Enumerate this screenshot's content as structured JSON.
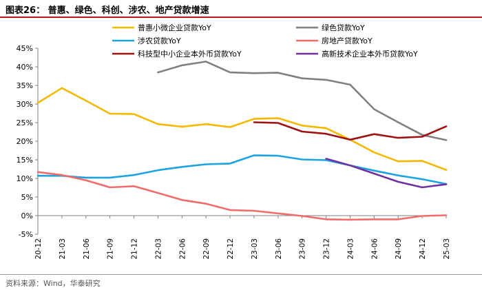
{
  "figure": {
    "title": "图表26：  普惠、绿色、科创、涉农、地产贷款增速",
    "source": "资料来源：Wind，华泰研究"
  },
  "chart_data": {
    "type": "line",
    "title": "普惠、绿色、科创、涉农、地产贷款增速",
    "xlabel": "",
    "ylabel": "",
    "ylim": [
      -0.05,
      0.45
    ],
    "yticks": [
      -0.05,
      0,
      0.05,
      0.1,
      0.15,
      0.2,
      0.25,
      0.3,
      0.35,
      0.4,
      0.45
    ],
    "ytick_labels": [
      "-5%",
      "0%",
      "5%",
      "10%",
      "15%",
      "20%",
      "25%",
      "30%",
      "35%",
      "40%",
      "45%"
    ],
    "categories": [
      "20-12",
      "21-03",
      "21-06",
      "21-09",
      "21-12",
      "22-03",
      "22-06",
      "22-09",
      "22-12",
      "23-03",
      "23-06",
      "23-09",
      "23-12",
      "24-03",
      "24-06",
      "24-09",
      "24-12",
      "25-03"
    ],
    "grid": false,
    "legend": "top",
    "series": [
      {
        "name": "普惠小微企业贷款YoY",
        "color": "#f5b800",
        "values": [
          0.303,
          0.343,
          0.309,
          0.274,
          0.273,
          0.246,
          0.239,
          0.246,
          0.238,
          0.26,
          0.262,
          0.242,
          0.235,
          0.204,
          0.17,
          0.146,
          0.147,
          0.123
        ]
      },
      {
        "name": "绿色贷款YoY",
        "color": "#7f7f7f",
        "values": [
          null,
          null,
          null,
          null,
          null,
          0.385,
          0.404,
          0.414,
          0.385,
          0.383,
          0.384,
          0.369,
          0.365,
          0.352,
          0.286,
          0.251,
          0.217,
          0.203
        ]
      },
      {
        "name": "涉农贷款YoY",
        "color": "#1aa3e0",
        "values": [
          0.107,
          0.107,
          0.102,
          0.102,
          0.109,
          0.122,
          0.131,
          0.138,
          0.14,
          0.162,
          0.161,
          0.151,
          0.149,
          0.135,
          0.121,
          0.108,
          0.098,
          0.085
        ]
      },
      {
        "name": "房地产贷款YoY",
        "color": "#f26b6b",
        "values": [
          0.117,
          0.109,
          0.095,
          0.076,
          0.079,
          0.061,
          0.042,
          0.032,
          0.015,
          0.013,
          0.006,
          -0.001,
          -0.01,
          -0.011,
          -0.01,
          -0.01,
          -0.001,
          0.001
        ]
      },
      {
        "name": "科技型中小企业本外币贷款YoY",
        "color": "#a01212",
        "values": [
          null,
          null,
          null,
          null,
          null,
          null,
          null,
          null,
          null,
          0.251,
          0.249,
          0.226,
          0.22,
          0.204,
          0.219,
          0.209,
          0.212,
          0.24
        ]
      },
      {
        "name": "高新技术企业本外币贷款YoY",
        "color": "#7030a0",
        "values": [
          null,
          null,
          null,
          null,
          null,
          null,
          null,
          null,
          null,
          null,
          null,
          null,
          0.153,
          0.135,
          0.113,
          0.091,
          0.076,
          0.084
        ]
      }
    ]
  }
}
